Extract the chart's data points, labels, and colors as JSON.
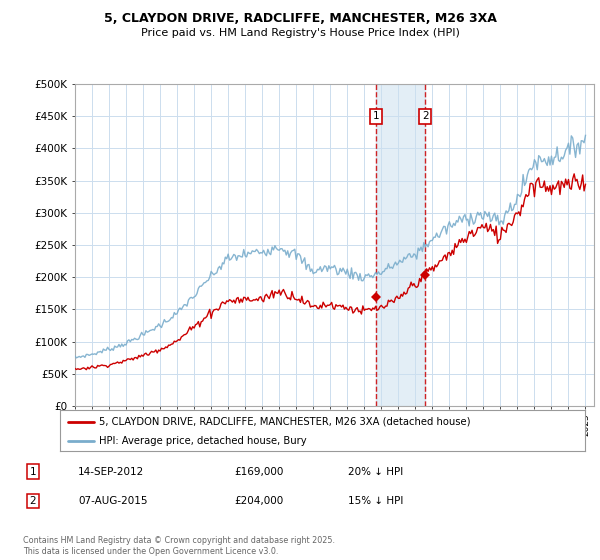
{
  "title": "5, CLAYDON DRIVE, RADCLIFFE, MANCHESTER, M26 3XA",
  "subtitle": "Price paid vs. HM Land Registry's House Price Index (HPI)",
  "ylim": [
    0,
    500000
  ],
  "xlim_start": 1995.0,
  "xlim_end": 2025.5,
  "yticks": [
    0,
    50000,
    100000,
    150000,
    200000,
    250000,
    300000,
    350000,
    400000,
    450000,
    500000
  ],
  "ytick_labels": [
    "£0",
    "£50K",
    "£100K",
    "£150K",
    "£200K",
    "£250K",
    "£300K",
    "£350K",
    "£400K",
    "£450K",
    "£500K"
  ],
  "line_color_red": "#cc0000",
  "line_color_blue": "#7aadcc",
  "vline1_x": 2012.71,
  "vline2_x": 2015.58,
  "sale1_price_y": 169000,
  "sale2_price_y": 204000,
  "sale1_date": "14-SEP-2012",
  "sale1_price": "£169,000",
  "sale1_hpi": "20% ↓ HPI",
  "sale2_date": "07-AUG-2015",
  "sale2_price": "£204,000",
  "sale2_hpi": "15% ↓ HPI",
  "legend_label_red": "5, CLAYDON DRIVE, RADCLIFFE, MANCHESTER, M26 3XA (detached house)",
  "legend_label_blue": "HPI: Average price, detached house, Bury",
  "footer": "Contains HM Land Registry data © Crown copyright and database right 2025.\nThis data is licensed under the Open Government Licence v3.0.",
  "background_color": "#ffffff",
  "grid_color": "#ccddee",
  "hpi_base_values": [
    75000,
    80000,
    88000,
    97000,
    110000,
    125000,
    143000,
    170000,
    200000,
    228000,
    235000,
    240000,
    248000,
    235000,
    210000,
    215000,
    208000,
    200000,
    207000,
    222000,
    235000,
    258000,
    278000,
    292000,
    298000,
    285000,
    320000,
    378000,
    385000,
    395000,
    415000
  ],
  "red_base_values": [
    57000,
    60000,
    64000,
    70000,
    78000,
    88000,
    100000,
    122000,
    145000,
    163000,
    165000,
    166000,
    178000,
    170000,
    154000,
    158000,
    153000,
    147000,
    152000,
    165000,
    190000,
    212000,
    235000,
    262000,
    278000,
    265000,
    298000,
    348000,
    340000,
    342000,
    348000
  ],
  "years_base": [
    1995,
    1996,
    1997,
    1998,
    1999,
    2000,
    2001,
    2002,
    2003,
    2004,
    2005,
    2006,
    2007,
    2008,
    2009,
    2010,
    2011,
    2012,
    2013,
    2014,
    2015,
    2016,
    2017,
    2018,
    2019,
    2020,
    2021,
    2022,
    2023,
    2024,
    2025
  ]
}
